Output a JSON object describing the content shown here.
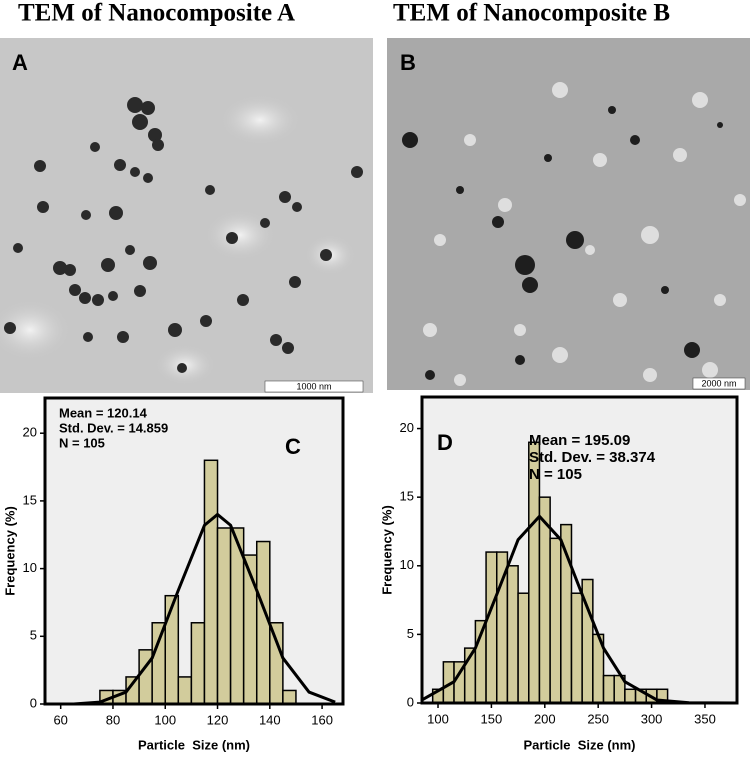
{
  "figures": [
    {
      "title": "TEM of Nanocomposite A",
      "panel_label": "A",
      "scale_bar": "1000 nm"
    },
    {
      "title": "TEM of Nanocomposite B",
      "panel_label": "B",
      "scale_bar": "2000 nm"
    }
  ],
  "chart_data": [
    {
      "type": "histogram",
      "panel_label": "C",
      "annotations": [
        "Mean = 120.14",
        "Std. Dev. = 14.859",
        "N = 105"
      ],
      "xlabel": "Particle  Size (nm)",
      "ylabel": "Frequency (%)",
      "bins": [
        75,
        80,
        85,
        90,
        95,
        100,
        105,
        110,
        115,
        120,
        125,
        130,
        135,
        140,
        145,
        150
      ],
      "values": [
        1,
        1,
        2,
        4,
        6,
        8,
        2,
        6,
        18,
        13,
        13,
        11,
        12,
        6,
        1
      ],
      "color": "#d2cc9c",
      "fit_curve": {
        "x": [
          55,
          65,
          75,
          85,
          95,
          105,
          115,
          120,
          125,
          135,
          145,
          155,
          165
        ],
        "y": [
          0,
          0,
          0.14,
          0.88,
          3.4,
          8.4,
          13.2,
          14,
          13.2,
          8.4,
          3.4,
          0.88,
          0.14
        ]
      },
      "xlim": [
        54,
        168
      ],
      "ylim": [
        0,
        22.6
      ],
      "xticks": [
        60,
        80,
        100,
        120,
        140,
        160
      ],
      "yticks": [
        0,
        5,
        10,
        15,
        20
      ]
    },
    {
      "type": "histogram",
      "panel_label": "D",
      "annotations": [
        "Mean = 195.09",
        "Std. Dev. = 38.374",
        "N = 105"
      ],
      "xlabel": "Particle  Size (nm)",
      "ylabel": "Frequency (%)",
      "bins": [
        95,
        105,
        115,
        125,
        135,
        145,
        155,
        165,
        175,
        185,
        195,
        205,
        215,
        225,
        235,
        245,
        255,
        265,
        275,
        285,
        295,
        305,
        315
      ],
      "values": [
        1,
        3,
        3,
        4,
        6,
        11,
        11,
        10,
        8,
        19,
        15,
        12,
        13,
        8,
        9,
        5,
        2,
        2,
        1,
        1,
        1,
        1
      ],
      "color": "#d2cc9c",
      "fit_curve": {
        "x": [
          85,
          115,
          135,
          155,
          175,
          195,
          215,
          235,
          255,
          275,
          305,
          335,
          380
        ],
        "y": [
          0.22,
          1.55,
          4,
          7.9,
          11.9,
          13.6,
          11.9,
          7.9,
          4,
          1.55,
          0.22,
          0.02,
          0
        ]
      },
      "xlim": [
        85,
        380
      ],
      "ylim": [
        0,
        22.3
      ],
      "xticks": [
        100,
        150,
        200,
        250,
        300,
        350
      ],
      "yticks": [
        0,
        5,
        10,
        15,
        20
      ]
    }
  ]
}
